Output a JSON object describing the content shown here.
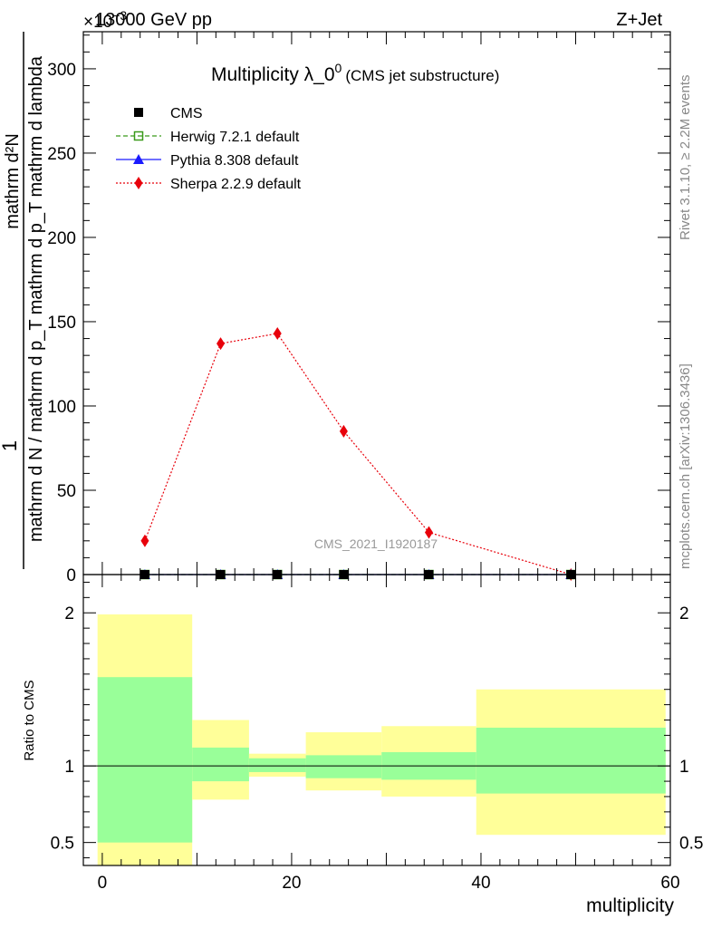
{
  "header": {
    "energy": "13000 GeV pp",
    "process": "Z+Jet",
    "exponent": "×10",
    "exponent_power": "−3"
  },
  "side_labels": {
    "rivet": "Rivet 3.1.10, ≥ 2.2M events",
    "mcplots": "mcplots.cern.ch [arXiv:1306.3436]"
  },
  "chart_data": [
    {
      "type": "line",
      "title": "Multiplicity λ_0",
      "title_sup": "0",
      "subtitle": "(CMS jet substructure)",
      "analysis": "CMS_2021_I1920187",
      "ylabel_num": "1",
      "ylabel_den": "mathrm d N / mathrm d p_T mathrm d p_T mathrm d lambda",
      "ylabel_top": "mathrm d²N",
      "xlim": [
        -2,
        60
      ],
      "ylim": [
        0,
        322
      ],
      "yticks": [
        0,
        50,
        100,
        150,
        200,
        250,
        300
      ],
      "legend": [
        {
          "name": "CMS",
          "color": "#000000",
          "marker": "square"
        },
        {
          "name": "Herwig 7.2.1 default",
          "color": "#3a9a1a",
          "marker": "open-square",
          "dash": "5,3"
        },
        {
          "name": "Pythia 8.308 default",
          "color": "#1a1aff",
          "marker": "triangle",
          "dash": ""
        },
        {
          "name": "Sherpa 2.2.9 default",
          "color": "#e8000b",
          "marker": "diamond",
          "dash": "2,2"
        }
      ],
      "series": [
        {
          "name": "CMS",
          "x": [
            4.5,
            12.5,
            18.5,
            25.5,
            34.5,
            49.5
          ],
          "y": [
            0,
            0,
            0,
            0,
            0,
            0
          ]
        },
        {
          "name": "Herwig 7.2.1 default",
          "x": [
            4.5,
            12.5,
            18.5,
            25.5,
            34.5,
            49.5
          ],
          "y": [
            0,
            0,
            0,
            0,
            0,
            0
          ]
        },
        {
          "name": "Pythia 8.308 default",
          "x": [
            4.5,
            12.5,
            18.5,
            25.5,
            34.5,
            49.5
          ],
          "y": [
            0,
            0,
            0,
            0,
            0,
            0
          ]
        },
        {
          "name": "Sherpa 2.2.9 default",
          "x": [
            4.5,
            12.5,
            18.5,
            25.5,
            34.5,
            49.5
          ],
          "y": [
            20,
            137,
            143,
            85,
            25,
            0
          ]
        }
      ]
    },
    {
      "type": "area",
      "ylabel": "Ratio to CMS",
      "xlabel": "multiplicity",
      "xlim": [
        -2,
        60
      ],
      "ylim": [
        0.35,
        2.25
      ],
      "yticks": [
        {
          "value": 0.5,
          "label": "0.5"
        },
        {
          "value": 1,
          "label": "1"
        },
        {
          "value": 2,
          "label": "2"
        }
      ],
      "xticks": [
        0,
        20,
        40,
        60
      ],
      "bins": [
        {
          "lo": -0.5,
          "hi": 9.5,
          "green": [
            0.5,
            1.58
          ],
          "yellow": [
            0.35,
            1.99
          ]
        },
        {
          "lo": 9.5,
          "hi": 15.5,
          "green": [
            0.9,
            1.12
          ],
          "yellow": [
            0.78,
            1.3
          ]
        },
        {
          "lo": 15.5,
          "hi": 21.5,
          "green": [
            0.96,
            1.05
          ],
          "yellow": [
            0.93,
            1.08
          ]
        },
        {
          "lo": 21.5,
          "hi": 29.5,
          "green": [
            0.92,
            1.07
          ],
          "yellow": [
            0.84,
            1.22
          ]
        },
        {
          "lo": 29.5,
          "hi": 39.5,
          "green": [
            0.91,
            1.09
          ],
          "yellow": [
            0.8,
            1.26
          ]
        },
        {
          "lo": 39.5,
          "hi": 59.5,
          "green": [
            0.82,
            1.25
          ],
          "yellow": [
            0.55,
            1.5
          ]
        }
      ]
    }
  ]
}
